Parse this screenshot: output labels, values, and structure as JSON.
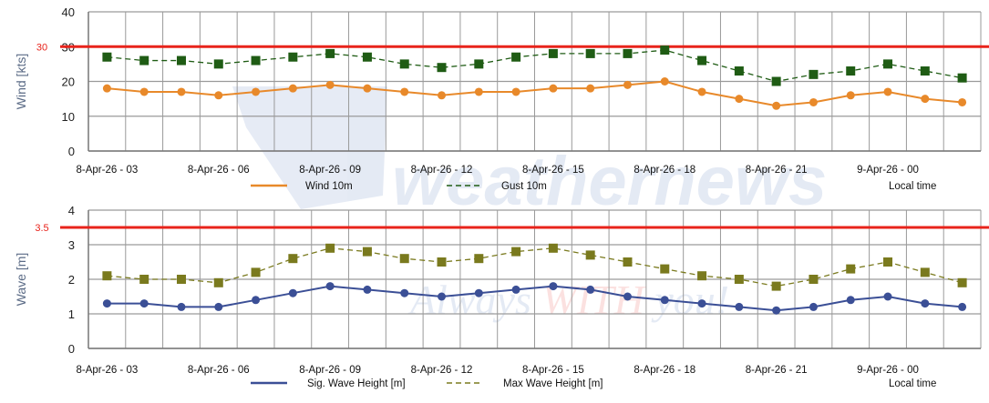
{
  "watermark": {
    "brand": "weathernews",
    "logo": "WN",
    "slogan_a": "Always ",
    "slogan_b": "WITH",
    "slogan_c": " you!"
  },
  "chart_data": [
    {
      "type": "line",
      "ylabel": "Wind [kts]",
      "ylim": [
        0,
        40
      ],
      "yticks": [
        "0",
        "10",
        "20",
        "30",
        "40"
      ],
      "threshold": {
        "value": 30,
        "label": "30",
        "color": "#e8231b"
      },
      "x": [
        "8-Apr-26 - 03",
        "8-Apr-26 - 04",
        "8-Apr-26 - 05",
        "8-Apr-26 - 06",
        "8-Apr-26 - 07",
        "8-Apr-26 - 08",
        "8-Apr-26 - 09",
        "8-Apr-26 - 10",
        "8-Apr-26 - 11",
        "8-Apr-26 - 12",
        "8-Apr-26 - 13",
        "8-Apr-26 - 14",
        "8-Apr-26 - 15",
        "8-Apr-26 - 16",
        "8-Apr-26 - 17",
        "8-Apr-26 - 18",
        "8-Apr-26 - 19",
        "8-Apr-26 - 20",
        "8-Apr-26 - 21",
        "8-Apr-26 - 22",
        "8-Apr-26 - 23",
        "9-Apr-26 - 00",
        "9-Apr-26 - 01",
        "9-Apr-26 - 02"
      ],
      "xtick_labels": [
        "8-Apr-26 - 03",
        "8-Apr-26 - 06",
        "8-Apr-26 - 09",
        "8-Apr-26 - 12",
        "8-Apr-26 - 15",
        "8-Apr-26 - 18",
        "8-Apr-26 - 21",
        "9-Apr-26 - 00"
      ],
      "xlabel": "Local time",
      "grid": true,
      "legend_position": "bottom",
      "series": [
        {
          "name": "Wind 10m",
          "color": "#e8892a",
          "marker": "circle",
          "dash": false,
          "values": [
            18,
            17,
            17,
            16,
            17,
            18,
            19,
            18,
            17,
            16,
            17,
            17,
            18,
            18,
            19,
            20,
            17,
            15,
            13,
            14,
            16,
            17,
            15,
            14
          ]
        },
        {
          "name": "Gust 10m",
          "color": "#1f5c14",
          "marker": "square",
          "dash": true,
          "values": [
            27,
            26,
            26,
            25,
            26,
            27,
            28,
            27,
            25,
            24,
            25,
            27,
            28,
            28,
            28,
            29,
            26,
            23,
            20,
            22,
            23,
            25,
            23,
            21
          ]
        }
      ]
    },
    {
      "type": "line",
      "ylabel": "Wave [m]",
      "ylim": [
        0,
        4
      ],
      "yticks": [
        "0",
        "1",
        "2",
        "3",
        "4"
      ],
      "threshold": {
        "value": 3.5,
        "label": "3.5",
        "color": "#e8231b"
      },
      "xtick_labels": [
        "8-Apr-26 - 03",
        "8-Apr-26 - 06",
        "8-Apr-26 - 09",
        "8-Apr-26 - 12",
        "8-Apr-26 - 15",
        "8-Apr-26 - 18",
        "8-Apr-26 - 21",
        "9-Apr-26 - 00"
      ],
      "xlabel": "Local time",
      "grid": true,
      "legend_position": "bottom",
      "series": [
        {
          "name": "Sig. Wave Height [m]",
          "color": "#3b4f96",
          "marker": "circle",
          "dash": false,
          "values": [
            1.3,
            1.3,
            1.2,
            1.2,
            1.4,
            1.6,
            1.8,
            1.7,
            1.6,
            1.5,
            1.6,
            1.7,
            1.8,
            1.7,
            1.5,
            1.4,
            1.3,
            1.2,
            1.1,
            1.2,
            1.4,
            1.5,
            1.3,
            1.2
          ]
        },
        {
          "name": "Max Wave Height [m]",
          "color": "#7a7a1e",
          "marker": "square",
          "dash": true,
          "values": [
            2.1,
            2.0,
            2.0,
            1.9,
            2.2,
            2.6,
            2.9,
            2.8,
            2.6,
            2.5,
            2.6,
            2.8,
            2.9,
            2.7,
            2.5,
            2.3,
            2.1,
            2.0,
            1.8,
            2.0,
            2.3,
            2.5,
            2.2,
            1.9
          ]
        }
      ]
    }
  ]
}
